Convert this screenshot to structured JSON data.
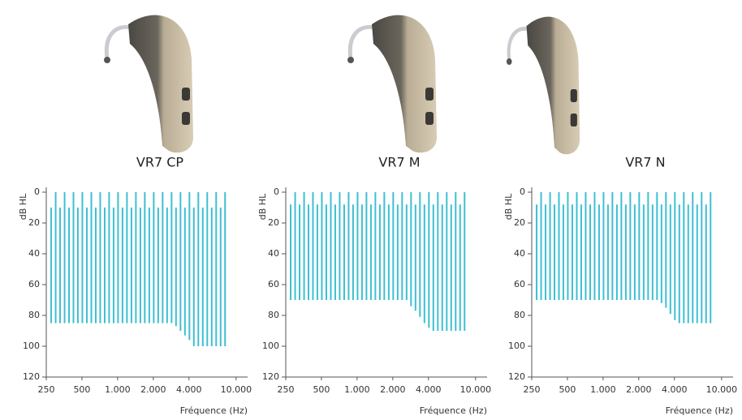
{
  "chart_data": [
    {
      "type": "range_bar",
      "title": "VR7 CP",
      "ylabel": "dB HL",
      "xlabel": "Fréquence (Hz)",
      "color": "#3dbfd2",
      "xscale": "log",
      "xlim": [
        250,
        12500
      ],
      "ylim": [
        120,
        0
      ],
      "xticks": [
        250,
        500,
        {
          "value": 1000,
          "label": "1.000"
        },
        {
          "value": 2000,
          "label": "2.000"
        },
        {
          "value": 4000,
          "label": "4.000"
        },
        {
          "value": 10000,
          "label": "10.000"
        }
      ],
      "yticks": [
        0,
        20,
        40,
        60,
        80,
        100,
        120
      ],
      "x": [
        275,
        300,
        327,
        357,
        389,
        424,
        462,
        504,
        550,
        600,
        654,
        713,
        778,
        848,
        925,
        1009,
        1100,
        1199,
        1308,
        1426,
        1556,
        1696,
        1850,
        2017,
        2200,
        2399,
        2616,
        2853,
        3111,
        3393,
        3700,
        4035,
        4400,
        4798,
        5232,
        5706,
        6223,
        6786,
        7400,
        8070
      ],
      "starts": [
        10,
        0,
        10,
        0,
        10,
        0,
        10,
        0,
        10,
        0,
        10,
        0,
        10,
        0,
        10,
        0,
        10,
        0,
        10,
        0,
        10,
        0,
        10,
        0,
        10,
        0,
        10,
        0,
        10,
        0,
        10,
        0,
        10,
        0,
        10,
        0,
        10,
        0,
        10,
        0
      ],
      "values": [
        85,
        85,
        85,
        85,
        85,
        85,
        85,
        85,
        85,
        85,
        85,
        85,
        85,
        85,
        85,
        85,
        85,
        85,
        85,
        85,
        85,
        85,
        85,
        85,
        85,
        85,
        85,
        85,
        87,
        90,
        93,
        96,
        100,
        100,
        100,
        100,
        100,
        100,
        100,
        100
      ]
    },
    {
      "type": "range_bar",
      "title": "VR7 M",
      "ylabel": "dB HL",
      "xlabel": "Fréquence (Hz)",
      "color": "#3dbfd2",
      "xscale": "log",
      "xlim": [
        250,
        12500
      ],
      "ylim": [
        120,
        0
      ],
      "xticks": [
        250,
        500,
        {
          "value": 1000,
          "label": "1.000"
        },
        {
          "value": 2000,
          "label": "2.000"
        },
        {
          "value": 4000,
          "label": "4.000"
        },
        {
          "value": 10000,
          "label": "10.000"
        }
      ],
      "yticks": [
        0,
        20,
        40,
        60,
        80,
        100,
        120
      ],
      "x": [
        275,
        300,
        327,
        357,
        389,
        424,
        462,
        504,
        550,
        600,
        654,
        713,
        778,
        848,
        925,
        1009,
        1100,
        1199,
        1308,
        1426,
        1556,
        1696,
        1850,
        2017,
        2200,
        2399,
        2616,
        2853,
        3111,
        3393,
        3700,
        4035,
        4400,
        4798,
        5232,
        5706,
        6223,
        6786,
        7400,
        8070
      ],
      "starts": [
        8,
        0,
        8,
        0,
        8,
        0,
        8,
        0,
        8,
        0,
        8,
        0,
        8,
        0,
        8,
        0,
        8,
        0,
        8,
        0,
        8,
        0,
        8,
        0,
        8,
        0,
        8,
        0,
        8,
        0,
        8,
        0,
        8,
        0,
        8,
        0,
        8,
        0,
        8,
        0
      ],
      "values": [
        70,
        70,
        70,
        70,
        70,
        70,
        70,
        70,
        70,
        70,
        70,
        70,
        70,
        70,
        70,
        70,
        70,
        70,
        70,
        70,
        70,
        70,
        70,
        70,
        70,
        70,
        70,
        74,
        77,
        81,
        85,
        88,
        90,
        90,
        90,
        90,
        90,
        90,
        90,
        90
      ]
    },
    {
      "type": "range_bar",
      "title": "VR7 N",
      "ylabel": "dB HL",
      "xlabel": "Fréquence (Hz)",
      "color": "#3dbfd2",
      "xscale": "log",
      "xlim": [
        250,
        12500
      ],
      "ylim": [
        120,
        0
      ],
      "xticks": [
        250,
        500,
        {
          "value": 1000,
          "label": "1.000"
        },
        {
          "value": 2000,
          "label": "2.000"
        },
        {
          "value": 4000,
          "label": "4.000"
        },
        {
          "value": 10000,
          "label": "10.000"
        }
      ],
      "yticks": [
        0,
        20,
        40,
        60,
        80,
        100,
        120
      ],
      "x": [
        275,
        300,
        327,
        357,
        389,
        424,
        462,
        504,
        550,
        600,
        654,
        713,
        778,
        848,
        925,
        1009,
        1100,
        1199,
        1308,
        1426,
        1556,
        1696,
        1850,
        2017,
        2200,
        2399,
        2616,
        2853,
        3111,
        3393,
        3700,
        4035,
        4400,
        4798,
        5232,
        5706,
        6223,
        6786,
        7400,
        8070
      ],
      "starts": [
        8,
        0,
        8,
        0,
        8,
        0,
        8,
        0,
        8,
        0,
        8,
        0,
        8,
        0,
        8,
        0,
        8,
        0,
        8,
        0,
        8,
        0,
        8,
        0,
        8,
        0,
        8,
        0,
        8,
        0,
        8,
        0,
        8,
        0,
        8,
        0,
        8,
        0,
        8,
        0
      ],
      "values": [
        70,
        70,
        70,
        70,
        70,
        70,
        70,
        70,
        70,
        70,
        70,
        70,
        70,
        70,
        70,
        70,
        70,
        70,
        70,
        70,
        70,
        70,
        70,
        70,
        70,
        70,
        70,
        70,
        72,
        75,
        79,
        83,
        85,
        85,
        85,
        85,
        85,
        85,
        85,
        85
      ]
    }
  ]
}
